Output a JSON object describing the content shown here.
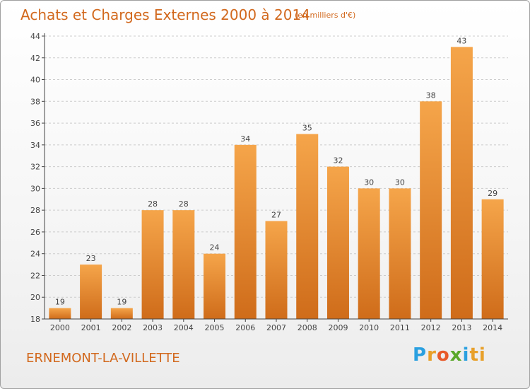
{
  "header": {
    "title": "Achats et Charges Externes 2000 à 2014",
    "subtitle": "(en milliers d'€)"
  },
  "footer": {
    "place": "ERNEMONT-LA-VILLETTE",
    "logo_letters": [
      "P",
      "r",
      "o",
      "x",
      "i",
      "ti"
    ]
  },
  "colors": {
    "bar_top": "#f5a54a",
    "bar_bottom": "#cf6c1a",
    "title": "#d2691e",
    "grid": "#cccccc",
    "axis": "#444444"
  },
  "chart_data": {
    "type": "bar",
    "title": "Achats et Charges Externes 2000 à 2014",
    "subtitle": "(en milliers d'€)",
    "categories": [
      "2000",
      "2001",
      "2002",
      "2003",
      "2004",
      "2005",
      "2006",
      "2007",
      "2008",
      "2009",
      "2010",
      "2011",
      "2012",
      "2013",
      "2014"
    ],
    "values": [
      19,
      23,
      19,
      28,
      28,
      24,
      34,
      27,
      35,
      32,
      30,
      30,
      38,
      43,
      29
    ],
    "ylim": [
      18,
      44
    ],
    "yticks": [
      18,
      20,
      22,
      24,
      26,
      28,
      30,
      32,
      34,
      36,
      38,
      40,
      42,
      44
    ],
    "grid": true,
    "xlabel": "",
    "ylabel": ""
  }
}
